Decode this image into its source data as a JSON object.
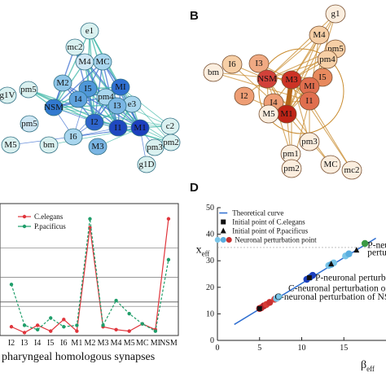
{
  "panels": {
    "B": "B",
    "D": "D"
  },
  "network_a": {
    "nodes": [
      {
        "id": "e1",
        "color": "#daf1f0"
      },
      {
        "id": "mc2",
        "color": "#daf1f0"
      },
      {
        "id": "M4",
        "color": "#cfe7f4"
      },
      {
        "id": "MC",
        "color": "#a9d6ee"
      },
      {
        "id": "pm5",
        "color": "#daf1f0"
      },
      {
        "id": "M2",
        "color": "#8ec5e8"
      },
      {
        "id": "I5",
        "color": "#4f97d9"
      },
      {
        "id": "MI",
        "color": "#2f6fd1"
      },
      {
        "id": "g1V",
        "color": "#daf1f0"
      },
      {
        "id": "pm4",
        "color": "#a9d6ee"
      },
      {
        "id": "I4",
        "color": "#5ea2dd"
      },
      {
        "id": "NSM",
        "color": "#3279cf"
      },
      {
        "id": "e3",
        "color": "#a9d6ee"
      },
      {
        "id": "I3",
        "color": "#7ab5e3"
      },
      {
        "id": "pm5",
        "color": "#cfe7f4"
      },
      {
        "id": "I2",
        "color": "#2e65cc"
      },
      {
        "id": "I1",
        "color": "#1f48c0"
      },
      {
        "id": "M1",
        "color": "#1c3fbe"
      },
      {
        "id": "c2",
        "color": "#daf1f0"
      },
      {
        "id": "M5",
        "color": "#daf1f0"
      },
      {
        "id": "bm",
        "color": "#daf1f0"
      },
      {
        "id": "I6",
        "color": "#a9d6ee"
      },
      {
        "id": "M3",
        "color": "#7ab5e3"
      },
      {
        "id": "pm3",
        "color": "#daf1f0"
      },
      {
        "id": "pm2",
        "color": "#daf1f0"
      },
      {
        "id": "g1D",
        "color": "#daf1f0"
      }
    ]
  },
  "network_b": {
    "nodes": [
      {
        "id": "g1",
        "color": "#fbeedf"
      },
      {
        "id": "M4",
        "color": "#f6cfa6"
      },
      {
        "id": "pm5",
        "color": "#f6cfa6"
      },
      {
        "id": "pm4",
        "color": "#f6cfa6"
      },
      {
        "id": "bm",
        "color": "#fbeedf"
      },
      {
        "id": "I6",
        "color": "#f6cfa6"
      },
      {
        "id": "I3",
        "color": "#f0aa83"
      },
      {
        "id": "NSM",
        "color": "#d2413a"
      },
      {
        "id": "M3",
        "color": "#cc3326"
      },
      {
        "id": "I5",
        "color": "#e88a5e"
      },
      {
        "id": "MI",
        "color": "#e06e4e"
      },
      {
        "id": "I2",
        "color": "#ee9e75"
      },
      {
        "id": "I4",
        "color": "#ee9e75"
      },
      {
        "id": "M1",
        "color": "#bf2417"
      },
      {
        "id": "I1",
        "color": "#e06e4e"
      },
      {
        "id": "M5",
        "color": "#fbeedf"
      },
      {
        "id": "pm3",
        "color": "#fbeedf"
      },
      {
        "id": "pm1",
        "color": "#fbeedf"
      },
      {
        "id": "pm2",
        "color": "#fbeedf"
      },
      {
        "id": "MC",
        "color": "#fbeedf"
      },
      {
        "id": "mc2",
        "color": "#fbeedf"
      }
    ]
  },
  "chart_c": {
    "type": "line",
    "legend": [
      "C.elegans",
      "P.pacificus"
    ],
    "categories": [
      "I2",
      "I3",
      "I4",
      "I5",
      "I6",
      "M1",
      "M2",
      "M3",
      "M4",
      "M5",
      "MC",
      "MI",
      "NSM"
    ],
    "xlabel": "pharyngeal  homologous  synapses",
    "series": [
      {
        "name": "C.elegans",
        "color": "#e0353c",
        "values": [
          0.3,
          0.1,
          0.35,
          0.15,
          0.55,
          0.15,
          3.7,
          0.3,
          0.2,
          0.15,
          0.4,
          0.2,
          4.0
        ]
      },
      {
        "name": "P.pacificus",
        "color": "#1f9e6a",
        "values": [
          1.75,
          0.35,
          0.2,
          0.6,
          0.3,
          0.35,
          4.0,
          0.35,
          1.2,
          0.75,
          0.4,
          0.15,
          2.6
        ]
      }
    ]
  },
  "chart_d": {
    "type": "scatter",
    "xlabel": "β",
    "xlabel_sub": "eff",
    "ylabel": "x",
    "ylabel_sub": "eff",
    "xticks": [
      "0",
      "5",
      "10",
      "15"
    ],
    "yticks": [
      "0",
      "10",
      "20",
      "30",
      "40",
      "50"
    ],
    "xlim": [
      0,
      20
    ],
    "ylim": [
      0,
      50
    ],
    "legend": [
      {
        "label": "Theoretical curve",
        "marker": "line"
      },
      {
        "label": "Initial point of C.elegans",
        "marker": "square"
      },
      {
        "label": "Initial point of P.pacificus",
        "marker": "triangle"
      },
      {
        "label": "Neuronal perturbation point",
        "marker": "circles"
      }
    ],
    "curve": [
      [
        2,
        6
      ],
      [
        18.8,
        38.5
      ]
    ],
    "points": [
      {
        "x": 5,
        "y": 12,
        "color": "#b3242c"
      },
      {
        "x": 5.2,
        "y": 12.3,
        "color": "#c8302f"
      },
      {
        "x": 5.5,
        "y": 13,
        "color": "#b3242c"
      },
      {
        "x": 5.8,
        "y": 13.5,
        "color": "#d63c36"
      },
      {
        "x": 6.2,
        "y": 14.3,
        "color": "#c8302f"
      },
      {
        "x": 6.8,
        "y": 15.5,
        "color": "#d63c36"
      },
      {
        "x": 7.1,
        "y": 16,
        "color": "#b3242c"
      },
      {
        "x": 7,
        "y": 15.8,
        "color": "#7ac5e8"
      },
      {
        "x": 7.3,
        "y": 16.4,
        "color": "#7ac5e8"
      },
      {
        "x": 10.6,
        "y": 23,
        "color": "#1c3fbe"
      },
      {
        "x": 11,
        "y": 23.8,
        "color": "#2e65cc"
      },
      {
        "x": 11.3,
        "y": 24.5,
        "color": "#1c3fbe"
      },
      {
        "x": 13.2,
        "y": 28.2,
        "color": "#7ac5e8"
      },
      {
        "x": 13.5,
        "y": 28.6,
        "color": "#5aaee0"
      },
      {
        "x": 13.8,
        "y": 29.2,
        "color": "#7ac5e8"
      },
      {
        "x": 15.2,
        "y": 31.8,
        "color": "#7ac5e8"
      },
      {
        "x": 15.6,
        "y": 32.6,
        "color": "#5aaee0"
      },
      {
        "x": 17.5,
        "y": 36.5,
        "color": "#3b9a45"
      }
    ],
    "squares": [
      [
        5,
        12
      ],
      [
        10.9,
        23.6
      ]
    ],
    "triangles": [
      [
        13.5,
        28.8
      ],
      [
        16.5,
        34
      ]
    ],
    "annotations": [
      {
        "text": "P-neuronal",
        "x": 17.8,
        "y": 34.8
      },
      {
        "text": "perturbation",
        "x": 17.8,
        "y": 32.0
      },
      {
        "text": "P-neuronal perturbatio",
        "x": 11.6,
        "y": 22.6
      },
      {
        "text": "C-neuronal perturbation of M",
        "x": 8.4,
        "y": 18.5
      },
      {
        "text": "C-neuronal perturbation of NSM",
        "x": 6.8,
        "y": 15.3
      }
    ]
  }
}
